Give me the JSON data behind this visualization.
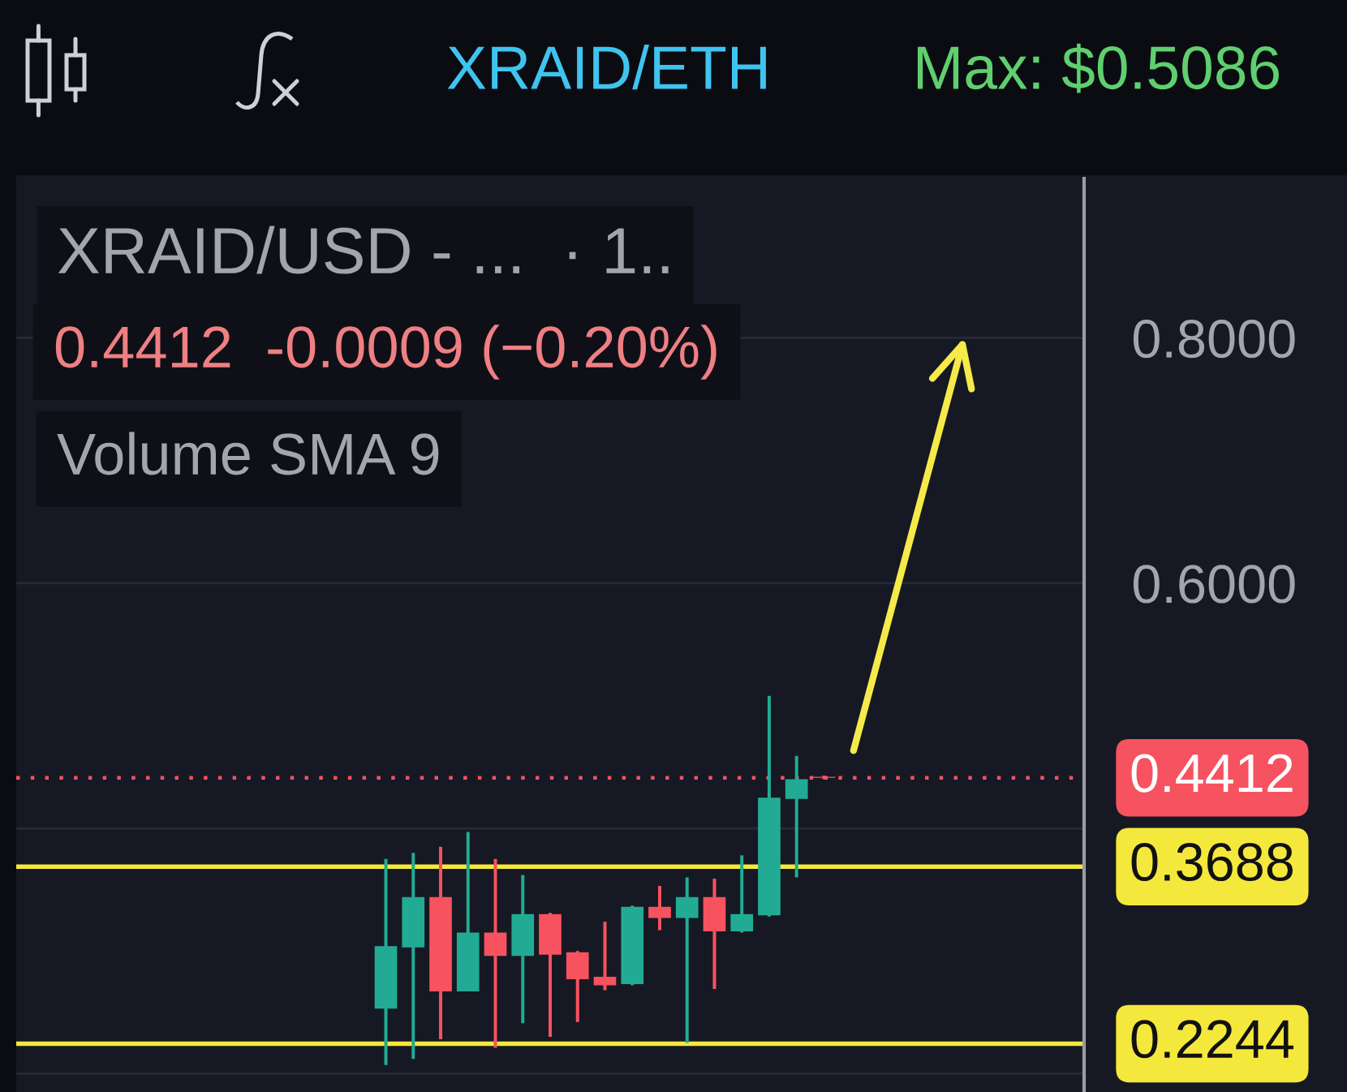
{
  "chart_data": {
    "type": "candlestick",
    "title": "XRAID/ETH",
    "subtitle": "XRAID/USD - ...  · 1..",
    "annotations": [
      "Max: $0.5086",
      "0.4412  -0.0009 (−0.20%)",
      "Volume SMA 9"
    ],
    "categories": [
      null,
      null,
      null,
      null,
      null,
      null,
      null,
      null,
      null,
      null,
      null,
      null,
      null,
      null,
      null,
      null,
      null,
      null,
      null,
      null,
      null,
      null,
      null,
      null,
      null,
      null,
      null,
      null,
      null,
      null,
      null,
      null,
      null,
      null,
      null,
      null,
      null,
      null,
      null
    ],
    "ohlc": [
      null,
      null,
      null,
      null,
      null,
      null,
      null,
      null,
      null,
      null,
      null,
      null,
      null,
      [
        0.253,
        0.375,
        0.207,
        0.304
      ],
      [
        0.303,
        0.38,
        0.212,
        0.344
      ],
      [
        0.344,
        0.385,
        0.228,
        0.267
      ],
      [
        0.267,
        0.397,
        0.267,
        0.315
      ],
      [
        0.315,
        0.375,
        0.221,
        0.296
      ],
      [
        0.296,
        0.362,
        0.241,
        0.33
      ],
      [
        0.33,
        0.331,
        0.23,
        0.297
      ],
      [
        0.299,
        0.3,
        0.242,
        0.277
      ],
      [
        0.279,
        0.324,
        0.268,
        0.272
      ],
      [
        0.273,
        0.337,
        0.272,
        0.336
      ],
      [
        0.336,
        0.353,
        0.317,
        0.327
      ],
      [
        0.327,
        0.36,
        0.225,
        0.344
      ],
      [
        0.344,
        0.359,
        0.269,
        0.316
      ],
      [
        0.316,
        0.378,
        0.315,
        0.33
      ],
      [
        0.329,
        0.508,
        0.328,
        0.425
      ],
      [
        0.424,
        0.459,
        0.36,
        0.44
      ],
      [
        0.4421,
        0.443,
        0.44,
        0.4412
      ],
      null,
      null,
      null,
      null,
      null,
      null,
      null,
      null,
      null
    ],
    "colors": [
      null,
      null,
      null,
      null,
      null,
      null,
      null,
      null,
      null,
      null,
      null,
      null,
      null,
      "#22ab94",
      "#22ab94",
      "#f7525f",
      "#22ab94",
      "#f7525f",
      "#22ab94",
      "#f7525f",
      "#f7525f",
      "#f7525f",
      "#22ab94",
      "#f7525f",
      "#22ab94",
      "#f7525f",
      "#22ab94",
      "#22ab94",
      "#22ab94",
      "#f7525f",
      null,
      null,
      null,
      null,
      null,
      null,
      null,
      null,
      null
    ],
    "ylim": [
      0.185,
      0.93
    ],
    "yticks": [
      {
        "value": 0.8,
        "label": "0.8000"
      },
      {
        "value": 0.6,
        "label": "0.6000"
      },
      {
        "value": 0.4,
        "label": null
      },
      {
        "value": 0.2,
        "label": null
      }
    ],
    "grid": "y",
    "tick_labels": "y",
    "ref_lines": [
      {
        "axis": "y",
        "value": 0.4412,
        "label": "0.4412",
        "color": "#f7525f",
        "line_style": "dotted"
      },
      {
        "axis": "y",
        "value": 0.3688,
        "label": "0.3688",
        "color": "#f5e83c",
        "line_style": "solid"
      },
      {
        "axis": "y",
        "value": 0.2244,
        "label": "0.2244",
        "color": "#f5e83c",
        "line_style": "solid"
      }
    ]
  }
}
